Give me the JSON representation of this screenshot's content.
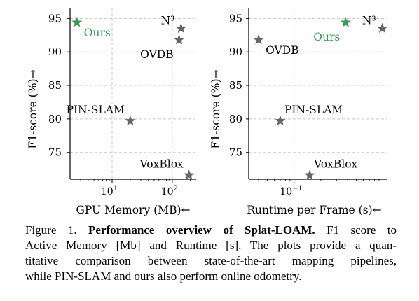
{
  "chart_data": [
    {
      "type": "scatter",
      "xlabel": "GPU Memory (MB)←",
      "ylabel": "F1-score (%)→",
      "xscale": "log",
      "xlim": [
        2.0,
        250
      ],
      "ylim": [
        71,
        96.5
      ],
      "grid": true,
      "grid_style": "dashed",
      "xticks": [
        {
          "value": 10,
          "label": "10^1"
        },
        {
          "value": 100,
          "label": "10^2"
        }
      ],
      "yticks": [
        75,
        80,
        85,
        90,
        95
      ],
      "points": [
        {
          "label": "Ours",
          "x": 2.6,
          "y": 94.4,
          "color": "#3a9a52",
          "label_color": "#3a9a52",
          "label_position": "below-right"
        },
        {
          "label": "N³",
          "x": 140,
          "y": 93.5,
          "color": "#666666",
          "label_color": "#000000",
          "label_position": "left"
        },
        {
          "label": "OVDB",
          "x": 130,
          "y": 91.8,
          "color": "#666666",
          "label_color": "#000000",
          "label_position": "below-left"
        },
        {
          "label": "PIN-SLAM",
          "x": 20,
          "y": 79.7,
          "color": "#666666",
          "label_color": "#000000",
          "label_position": "above-left"
        },
        {
          "label": "VoxBlox",
          "x": 190,
          "y": 71.6,
          "color": "#666666",
          "label_color": "#000000",
          "label_position": "above-left"
        }
      ]
    },
    {
      "type": "scatter",
      "xlabel": "Runtime per Frame (s)←",
      "ylabel": "F1-score (%)→",
      "xscale": "log",
      "xlim": [
        0.031,
        1.1
      ],
      "ylim": [
        71,
        96.5
      ],
      "grid": true,
      "grid_style": "dashed",
      "xticks": [
        {
          "value": 0.1,
          "label": "10^-1"
        }
      ],
      "yticks": [
        75,
        80,
        85,
        90,
        95
      ],
      "points": [
        {
          "label": "Ours",
          "x": 0.38,
          "y": 94.4,
          "color": "#3a9a52",
          "label_color": "#3a9a52",
          "label_position": "below-left"
        },
        {
          "label": "N³",
          "x": 0.98,
          "y": 93.5,
          "color": "#666666",
          "label_color": "#000000",
          "label_position": "left"
        },
        {
          "label": "OVDB",
          "x": 0.04,
          "y": 91.8,
          "color": "#666666",
          "label_color": "#000000",
          "label_position": "below-right"
        },
        {
          "label": "PIN-SLAM",
          "x": 0.07,
          "y": 79.7,
          "color": "#666666",
          "label_color": "#000000",
          "label_position": "above-right"
        },
        {
          "label": "VoxBlox",
          "x": 0.15,
          "y": 71.6,
          "color": "#666666",
          "label_color": "#000000",
          "label_position": "above-right"
        }
      ]
    }
  ],
  "caption": {
    "prefix": "Figure 1.",
    "title": "Performance overview of Splat-LOAM.",
    "line1_rest": " F1 score to",
    "line2": "Active Memory [Mb] and Runtime [s]. The plots provide a quan-",
    "line3": "titative comparison between state-of-the-art mapping pipelines,",
    "line4": "while PIN-SLAM and ours also perform online odometry."
  }
}
